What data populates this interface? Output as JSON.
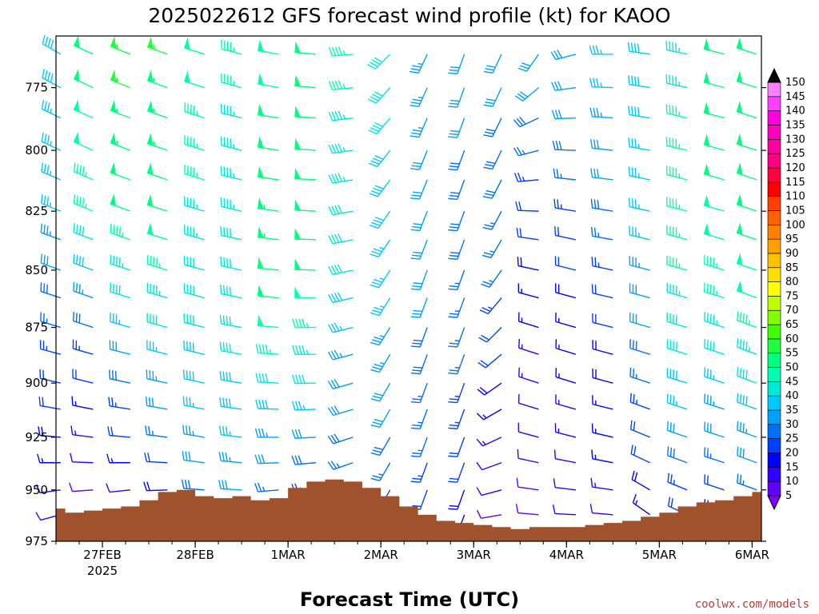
{
  "chart_data": {
    "type": "wind-barb-time-height",
    "title": "2025022612 GFS forecast wind profile (kt) for KAOO",
    "xlabel": "Forecast Time (UTC)",
    "ylabel": "",
    "credit": "coolwx.com/models",
    "x_unit": "days since 26 FEB 2025 12 UTC",
    "xlim": [
      0,
      7.6
    ],
    "ylim": [
      975,
      755
    ],
    "x_ticks": [
      {
        "x": 0.5,
        "label": "27FEB",
        "sub": "2025"
      },
      {
        "x": 1.5,
        "label": "28FEB",
        "sub": ""
      },
      {
        "x": 2.5,
        "label": "1MAR",
        "sub": ""
      },
      {
        "x": 3.5,
        "label": "2MAR",
        "sub": ""
      },
      {
        "x": 4.5,
        "label": "3MAR",
        "sub": ""
      },
      {
        "x": 5.5,
        "label": "4MAR",
        "sub": ""
      },
      {
        "x": 6.5,
        "label": "5MAR",
        "sub": ""
      },
      {
        "x": 7.5,
        "label": "6MAR",
        "sub": ""
      }
    ],
    "y_ticks": [
      775,
      800,
      825,
      850,
      875,
      900,
      925,
      950,
      975
    ],
    "pressure_levels": [
      762,
      775,
      787,
      800,
      812,
      825,
      837,
      850,
      862,
      875,
      887,
      900,
      912,
      925,
      937,
      950,
      962
    ],
    "colorbar": {
      "values": [
        5,
        10,
        15,
        20,
        25,
        30,
        35,
        40,
        45,
        50,
        55,
        60,
        65,
        70,
        75,
        80,
        85,
        90,
        95,
        100,
        105,
        110,
        115,
        120,
        125,
        130,
        135,
        140,
        145,
        150
      ],
      "colors": [
        "#7f00ff",
        "#6000ff",
        "#3000ff",
        "#0000ff",
        "#0040ff",
        "#0070ff",
        "#00a0ff",
        "#00c8ff",
        "#00e8d8",
        "#00ffb0",
        "#00ff80",
        "#20ff40",
        "#40ff00",
        "#80ff00",
        "#c0ff00",
        "#ffff00",
        "#ffe000",
        "#ffc000",
        "#ffa000",
        "#ff8000",
        "#ff6000",
        "#ff4000",
        "#ff0000",
        "#ff0040",
        "#ff0080",
        "#ff00a0",
        "#ff00c0",
        "#ff00e0",
        "#ff40ff",
        "#ff80ff"
      ],
      "extend_top_color": "#000000",
      "extend_bottom_color": "#8000ff"
    },
    "terrain": {
      "color": "#a0522d",
      "x": [
        0,
        0.1,
        0.3,
        0.5,
        0.7,
        0.9,
        1.1,
        1.3,
        1.5,
        1.7,
        1.9,
        2.1,
        2.3,
        2.5,
        2.7,
        2.9,
        3.1,
        3.3,
        3.5,
        3.7,
        3.9,
        4.1,
        4.3,
        4.5,
        4.7,
        4.9,
        5.1,
        5.3,
        5.5,
        5.7,
        5.9,
        6.1,
        6.3,
        6.5,
        6.7,
        6.9,
        7.1,
        7.3,
        7.5,
        7.6
      ],
      "p": [
        959,
        961,
        960,
        959,
        958,
        955,
        951,
        950,
        953,
        954,
        953,
        955,
        954,
        949,
        946,
        945,
        946,
        949,
        953,
        958,
        962,
        965,
        966,
        967,
        968,
        969,
        968,
        968,
        968,
        967,
        966,
        965,
        963,
        961,
        958,
        956,
        955,
        953,
        951,
        944
      ]
    },
    "wind_columns": [
      {
        "x": 0.05,
        "ddd": [
          300,
          298,
          296,
          295,
          293,
          292,
          290,
          290,
          288,
          287,
          285,
          283,
          280,
          275,
          270,
          262,
          255
        ],
        "spd": [
          38,
          38,
          37,
          37,
          36,
          35,
          33,
          30,
          28,
          26,
          24,
          22,
          20,
          18,
          15,
          12,
          10
        ]
      },
      {
        "x": 0.4,
        "ddd": [
          295,
          295,
          294,
          294,
          293,
          292,
          291,
          290,
          289,
          288,
          286,
          284,
          281,
          277,
          272,
          266,
          260
        ],
        "spd": [
          52,
          50,
          49,
          48,
          47,
          45,
          42,
          38,
          33,
          28,
          24,
          20,
          16,
          13,
          10,
          8,
          6
        ]
      },
      {
        "x": 0.8,
        "ddd": [
          292,
          292,
          291,
          291,
          290,
          290,
          289,
          288,
          287,
          286,
          284,
          282,
          279,
          275,
          270,
          264,
          258
        ],
        "spd": [
          56,
          55,
          54,
          53,
          52,
          50,
          47,
          44,
          40,
          36,
          32,
          28,
          24,
          20,
          16,
          12,
          9
        ]
      },
      {
        "x": 1.2,
        "ddd": [
          290,
          290,
          290,
          289,
          289,
          288,
          288,
          287,
          286,
          285,
          284,
          282,
          280,
          277,
          273,
          268,
          262
        ],
        "spd": [
          55,
          54,
          54,
          53,
          52,
          50,
          48,
          46,
          43,
          40,
          37,
          34,
          30,
          26,
          22,
          18,
          14
        ]
      },
      {
        "x": 1.6,
        "ddd": [
          288,
          288,
          288,
          287,
          287,
          286,
          286,
          285,
          285,
          284,
          283,
          282,
          281,
          279,
          277,
          274,
          270
        ],
        "spd": [
          48,
          48,
          47,
          46,
          45,
          44,
          43,
          42,
          41,
          40,
          39,
          38,
          36,
          34,
          32,
          28,
          24
        ]
      },
      {
        "x": 2.0,
        "ddd": [
          285,
          285,
          284,
          284,
          283,
          283,
          282,
          282,
          281,
          280,
          280,
          279,
          278,
          277,
          275,
          273,
          270
        ],
        "spd": [
          45,
          45,
          44,
          44,
          43,
          43,
          42,
          42,
          41,
          40,
          40,
          39,
          38,
          36,
          34,
          30,
          26
        ]
      },
      {
        "x": 2.4,
        "ddd": [
          280,
          280,
          279,
          279,
          278,
          278,
          277,
          276,
          276,
          275,
          274,
          273,
          272,
          270,
          268,
          265,
          262
        ],
        "spd": [
          48,
          49,
          50,
          51,
          52,
          53,
          53,
          52,
          50,
          48,
          45,
          42,
          38,
          34,
          30,
          26,
          22
        ]
      },
      {
        "x": 2.8,
        "ddd": [
          275,
          275,
          274,
          274,
          273,
          273,
          272,
          272,
          271,
          270,
          270,
          269,
          268,
          267,
          265,
          263,
          260
        ],
        "spd": [
          50,
          50,
          51,
          52,
          52,
          52,
          51,
          50,
          48,
          46,
          43,
          40,
          36,
          32,
          28,
          24,
          20
        ]
      },
      {
        "x": 3.2,
        "ddd": [
          265,
          264,
          263,
          262,
          261,
          260,
          259,
          258,
          257,
          256,
          255,
          254,
          253,
          252,
          251,
          250,
          250
        ],
        "spd": [
          45,
          45,
          44,
          44,
          43,
          42,
          41,
          40,
          38,
          36,
          34,
          32,
          30,
          28,
          26,
          24,
          22
        ]
      },
      {
        "x": 3.6,
        "ddd": [
          225,
          222,
          220,
          218,
          216,
          215,
          214,
          213,
          212,
          212,
          211,
          210,
          210,
          210,
          210,
          210,
          210
        ],
        "spd": [
          40,
          40,
          40,
          39,
          38,
          38,
          37,
          36,
          35,
          34,
          33,
          32,
          30,
          28,
          26,
          24,
          22
        ]
      },
      {
        "x": 4.0,
        "ddd": [
          205,
          204,
          203,
          202,
          202,
          201,
          201,
          200,
          200,
          200,
          200,
          200,
          200,
          200,
          200,
          200,
          200
        ],
        "spd": [
          33,
          33,
          33,
          32,
          32,
          31,
          31,
          30,
          30,
          29,
          28,
          27,
          26,
          25,
          24,
          22,
          20
        ]
      },
      {
        "x": 4.4,
        "ddd": [
          200,
          200,
          200,
          200,
          200,
          200,
          200,
          200,
          200,
          200,
          200,
          200,
          200,
          200,
          200,
          200,
          200
        ],
        "spd": [
          30,
          30,
          30,
          29,
          29,
          28,
          28,
          27,
          27,
          26,
          25,
          24,
          23,
          22,
          20,
          18,
          16
        ]
      },
      {
        "x": 4.8,
        "ddd": [
          205,
          205,
          206,
          206,
          207,
          208,
          210,
          215,
          220,
          225,
          230,
          235,
          240,
          245,
          250,
          255,
          260
        ],
        "spd": [
          30,
          30,
          29,
          29,
          28,
          27,
          26,
          25,
          24,
          22,
          20,
          18,
          16,
          14,
          12,
          10,
          8
        ]
      },
      {
        "x": 5.2,
        "ddd": [
          215,
          230,
          245,
          255,
          265,
          272,
          278,
          282,
          285,
          287,
          288,
          288,
          287,
          285,
          282,
          278,
          275
        ],
        "spd": [
          30,
          30,
          28,
          26,
          24,
          22,
          20,
          18,
          16,
          15,
          14,
          13,
          12,
          11,
          10,
          9,
          8
        ]
      },
      {
        "x": 5.6,
        "ddd": [
          255,
          262,
          268,
          272,
          276,
          279,
          282,
          284,
          285,
          286,
          287,
          287,
          286,
          284,
          281,
          277,
          273
        ],
        "spd": [
          32,
          31,
          30,
          28,
          26,
          24,
          22,
          20,
          18,
          17,
          16,
          15,
          14,
          13,
          12,
          11,
          10
        ]
      },
      {
        "x": 6.0,
        "ddd": [
          270,
          272,
          274,
          276,
          277,
          279,
          280,
          282,
          283,
          284,
          285,
          285,
          284,
          283,
          281,
          278,
          275
        ],
        "spd": [
          36,
          35,
          34,
          32,
          30,
          28,
          26,
          24,
          22,
          20,
          19,
          18,
          17,
          16,
          15,
          13,
          12
        ]
      },
      {
        "x": 6.4,
        "ddd": [
          278,
          279,
          279,
          280,
          281,
          282,
          283,
          284,
          285,
          286,
          287,
          288,
          290,
          292,
          295,
          300,
          305
        ],
        "spd": [
          38,
          38,
          38,
          37,
          37,
          36,
          35,
          34,
          32,
          30,
          28,
          26,
          24,
          22,
          20,
          18,
          16
        ]
      },
      {
        "x": 6.8,
        "ddd": [
          282,
          282,
          283,
          283,
          284,
          284,
          285,
          285,
          286,
          286,
          287,
          287,
          288,
          289,
          290,
          292,
          295
        ],
        "spd": [
          44,
          44,
          45,
          45,
          46,
          46,
          46,
          45,
          44,
          42,
          40,
          38,
          35,
          32,
          28,
          24,
          20
        ]
      },
      {
        "x": 7.2,
        "ddd": [
          285,
          285,
          285,
          286,
          286,
          286,
          287,
          287,
          287,
          288,
          288,
          288,
          288,
          288,
          288,
          288,
          288
        ],
        "spd": [
          50,
          50,
          50,
          50,
          50,
          49,
          48,
          47,
          45,
          43,
          40,
          37,
          34,
          30,
          26,
          22,
          18
        ]
      },
      {
        "x": 7.55,
        "ddd": [
          288,
          288,
          288,
          288,
          289,
          289,
          289,
          289,
          290,
          290,
          290,
          290,
          290,
          290,
          290,
          290,
          290
        ],
        "spd": [
          52,
          52,
          52,
          52,
          51,
          51,
          50,
          49,
          48,
          46,
          44,
          41,
          38,
          34,
          30,
          26,
          22
        ]
      }
    ]
  }
}
